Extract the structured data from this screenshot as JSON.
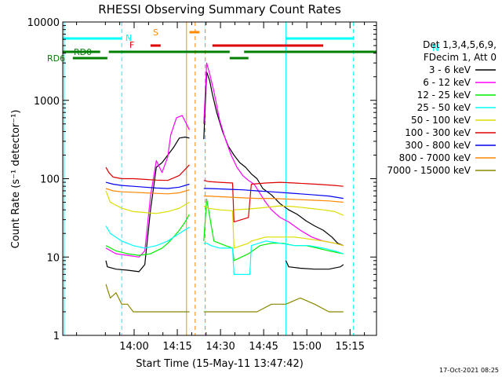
{
  "chart_data": {
    "type": "line",
    "title": "RHESSI Observing Summary Count Rates",
    "xlabel": "Start Time (15-May-11 13:47:42)",
    "ylabel": "Count Rate (s⁻¹ detector⁻¹)",
    "y_scale": "log",
    "ylim": [
      1,
      10000
    ],
    "y_ticks": [
      1,
      10,
      100,
      1000,
      10000
    ],
    "y_tick_labels": [
      "1",
      "10",
      "100",
      "1000",
      "10000"
    ],
    "xlim_minutes": [
      -12.5,
      96.5
    ],
    "x_ticks": [
      {
        "min": 12.3,
        "label": "14:00"
      },
      {
        "min": 27.3,
        "label": "14:15"
      },
      {
        "min": 42.3,
        "label": "14:30"
      },
      {
        "min": 57.3,
        "label": "14:45"
      },
      {
        "min": 72.3,
        "label": "15:00"
      },
      {
        "min": 87.3,
        "label": "15:15"
      }
    ],
    "legend": {
      "header": [
        "Det 1,3,4,5,6,9,",
        "FDecim 1, Att 0"
      ],
      "placement": "right",
      "entries": [
        {
          "label": "3 - 6 keV",
          "color": "#000000"
        },
        {
          "label": "6 - 12 keV",
          "color": "#ff00ff"
        },
        {
          "label": "12 - 25 keV",
          "color": "#00ee00"
        },
        {
          "label": "25 - 50 keV",
          "color": "#00ffff"
        },
        {
          "label": "50 - 100 keV",
          "color": "#dddd00"
        },
        {
          "label": "100 - 300 keV",
          "color": "#dd0000"
        },
        {
          "label": "300 - 800 keV",
          "color": "#0000ee"
        },
        {
          "label": "800 - 7000 keV",
          "color": "#ff8800"
        },
        {
          "label": "7000 - 15000 keV",
          "color": "#888800"
        }
      ]
    },
    "flag_labels": {
      "N": "N",
      "F": "F",
      "S": "S",
      "RD0": "RD0",
      "RD6": "RD6"
    },
    "flag_bars": [
      {
        "name": "N",
        "color": "#00ffff",
        "ranges": [
          [
            -12.5,
            8.0
          ],
          [
            65.0,
            88.5
          ]
        ]
      },
      {
        "name": "F",
        "color": "#dd0000",
        "ranges": [
          [
            18.0,
            21.5
          ],
          [
            39.5,
            78.0
          ]
        ]
      },
      {
        "name": "S",
        "color": "#ff8800",
        "ranges": [
          [
            31.5,
            35.0
          ]
        ]
      },
      {
        "name": "RD0",
        "color": "#007f00",
        "ranges": [
          [
            -12.5,
            0.5
          ],
          [
            3.5,
            45.5
          ],
          [
            50.5,
            96.5
          ]
        ]
      },
      {
        "name": "RD6",
        "color": "#007f00",
        "ranges": [
          [
            -9.0,
            3.0
          ],
          [
            45.5,
            52.0
          ]
        ]
      }
    ],
    "vertical_markers": [
      {
        "min": -12.0,
        "color": "#00ffff",
        "style": "solid"
      },
      {
        "min": 8.0,
        "color": "#00ffff",
        "style": "dashed"
      },
      {
        "min": 30.5,
        "color": "#ff8800",
        "style": "solid"
      },
      {
        "min": 33.5,
        "color": "#ff8800",
        "style": "dashed"
      },
      {
        "min": 37.0,
        "color": "#ff8800",
        "style": "dashed"
      },
      {
        "min": 65.0,
        "color": "#00ffff",
        "style": "solid"
      },
      {
        "min": 88.5,
        "color": "#00ffff",
        "style": "dashed"
      }
    ],
    "series": [
      {
        "name": "3 - 6 keV",
        "color": "#000000",
        "segments": [
          {
            "x": [
              2.5,
              3,
              6,
              10,
              14,
              16,
              18,
              20,
              22,
              24,
              26,
              28,
              30,
              31.5
            ],
            "y": [
              9,
              7.5,
              7,
              6.8,
              6.5,
              8,
              40,
              140,
              160,
              200,
              250,
              330,
              340,
              330
            ]
          },
          {
            "x": [
              36.5,
              37.5,
              38.5,
              39.5,
              41,
              43,
              45,
              47,
              49,
              51,
              53,
              55,
              57,
              60,
              63,
              66,
              69,
              72,
              75,
              78,
              81,
              83,
              85
            ],
            "y": [
              320,
              2300,
              1800,
              1200,
              700,
              400,
              260,
              200,
              160,
              140,
              115,
              100,
              75,
              62,
              48,
              40,
              35,
              29,
              25,
              22,
              18,
              15,
              14
            ]
          },
          {
            "x": [
              65,
              66,
              70,
              75,
              80,
              84,
              85
            ],
            "y": [
              9,
              7.5,
              7.2,
              7,
              7,
              7.5,
              8
            ]
          }
        ]
      },
      {
        "name": "6 - 12 keV",
        "color": "#ff00ff",
        "segments": [
          {
            "x": [
              2.5,
              6,
              10,
              14,
              16,
              18,
              20,
              22,
              24,
              25,
              27,
              29,
              30,
              31.5
            ],
            "y": [
              13,
              11,
              10.5,
              10,
              12,
              60,
              170,
              120,
              190,
              360,
              600,
              640,
              540,
              420
            ]
          },
          {
            "x": [
              36.5,
              37.5,
              38.5,
              40,
              42,
              44,
              46,
              48,
              50,
              52,
              54,
              56,
              58,
              60,
              63,
              66,
              70,
              74,
              78,
              82,
              85
            ],
            "y": [
              500,
              3000,
              2200,
              1300,
              560,
              320,
              200,
              140,
              110,
              95,
              85,
              65,
              50,
              40,
              32,
              28,
              22,
              18,
              16,
              15,
              14
            ]
          }
        ]
      },
      {
        "name": "12 - 25 keV",
        "color": "#00ee00",
        "segments": [
          {
            "x": [
              2.5,
              6,
              10,
              14,
              18,
              22,
              24,
              26,
              28,
              30,
              31.5
            ],
            "y": [
              14,
              12,
              11,
              10.5,
              11,
              13,
              15,
              18,
              22,
              28,
              35
            ]
          },
          {
            "x": [
              36.5,
              37.5,
              40,
              44,
              46.5,
              47,
              52,
              56,
              60,
              64,
              68,
              72,
              76,
              80,
              85
            ],
            "y": [
              16,
              55,
              16,
              14,
              13,
              9,
              11,
              14,
              15,
              15,
              14,
              14,
              13,
              12,
              11
            ]
          }
        ]
      },
      {
        "name": "25 - 50 keV",
        "color": "#00ffff",
        "segments": [
          {
            "x": [
              2.5,
              4,
              8,
              12,
              16,
              20,
              24,
              28,
              31.5
            ],
            "y": [
              25,
              20,
              16,
              14,
              13,
              14,
              16,
              20,
              24
            ]
          },
          {
            "x": [
              36.5,
              37.5,
              39,
              42,
              46.5,
              47,
              50,
              52.5,
              53,
              58,
              63,
              68,
              73,
              78,
              82,
              85
            ],
            "y": [
              15,
              15,
              14,
              13,
              13,
              6,
              6,
              6,
              14,
              16,
              15,
              14,
              14,
              13,
              12,
              11
            ]
          }
        ]
      },
      {
        "name": "50 - 100 keV",
        "color": "#dddd00",
        "segments": [
          {
            "x": [
              2.5,
              4,
              8,
              12,
              16,
              20,
              24,
              28,
              31.5
            ],
            "y": [
              70,
              50,
              42,
              38,
              37,
              36,
              38,
              42,
              50
            ]
          },
          {
            "x": [
              36.5,
              38,
              42,
              46.5,
              47,
              52,
              53,
              58,
              63,
              68,
              73,
              78,
              82,
              85
            ],
            "y": [
              45,
              42,
              40,
              39,
              13,
              15,
              16,
              18,
              18,
              18,
              17,
              16,
              15,
              14
            ]
          },
          {
            "x": [
              47,
              52,
              58,
              63,
              68,
              73,
              78,
              82,
              85
            ],
            "y": [
              40,
              41,
              43,
              45,
              44,
              42,
              40,
              38,
              34
            ]
          }
        ]
      },
      {
        "name": "100 - 300 keV",
        "color": "#dd0000",
        "segments": [
          {
            "x": [
              2.5,
              3.5,
              5,
              8,
              12,
              16,
              20,
              24,
              28,
              31.5
            ],
            "y": [
              140,
              120,
              105,
              100,
              100,
              98,
              96,
              95,
              110,
              150
            ]
          },
          {
            "x": [
              36.5,
              38,
              42,
              46.5,
              47,
              52,
              53,
              58,
              63,
              68,
              73,
              78,
              82,
              85
            ],
            "y": [
              95,
              92,
              90,
              88,
              28,
              32,
              85,
              88,
              90,
              88,
              86,
              84,
              82,
              80
            ]
          }
        ]
      },
      {
        "name": "300 - 800 keV",
        "color": "#0000ee",
        "segments": [
          {
            "x": [
              2.5,
              5,
              8,
              12,
              16,
              20,
              24,
              28,
              31.5
            ],
            "y": [
              90,
              85,
              82,
              80,
              78,
              76,
              75,
              78,
              85
            ]
          },
          {
            "x": [
              36.5,
              38,
              42,
              46,
              50,
              55,
              60,
              65,
              70,
              75,
              80,
              85
            ],
            "y": [
              75,
              75,
              74,
              73,
              72,
              70,
              68,
              66,
              64,
              62,
              60,
              56
            ]
          }
        ]
      },
      {
        "name": "800 - 7000 keV",
        "color": "#ff8800",
        "segments": [
          {
            "x": [
              2.5,
              5,
              8,
              12,
              16,
              20,
              24,
              28,
              31.5
            ],
            "y": [
              75,
              70,
              68,
              67,
              66,
              65,
              64,
              66,
              72
            ]
          },
          {
            "x": [
              36.5,
              38,
              42,
              46,
              50,
              55,
              60,
              65,
              70,
              75,
              80,
              85
            ],
            "y": [
              60,
              60,
              59,
              58,
              57,
              56,
              56,
              55,
              54,
              53,
              52,
              50
            ]
          }
        ]
      },
      {
        "name": "7000 - 15000 keV",
        "color": "#888800",
        "segments": [
          {
            "x": [
              2.5,
              4,
              6,
              8,
              10,
              12,
              14,
              16,
              18,
              20,
              22,
              24,
              26,
              28,
              30,
              31.5
            ],
            "y": [
              4.5,
              3,
              3.5,
              2.5,
              2.5,
              2,
              2,
              2,
              2,
              2,
              2,
              2,
              2,
              2,
              2,
              2
            ]
          },
          {
            "x": [
              36.5,
              40,
              45,
              50,
              55,
              60,
              65,
              70,
              75,
              80,
              85
            ],
            "y": [
              2,
              2,
              2,
              2,
              2,
              2.5,
              2.5,
              3,
              2.5,
              2,
              2
            ]
          }
        ]
      }
    ]
  },
  "footer": {
    "timestamp": "17-Oct-2021 08:25"
  }
}
